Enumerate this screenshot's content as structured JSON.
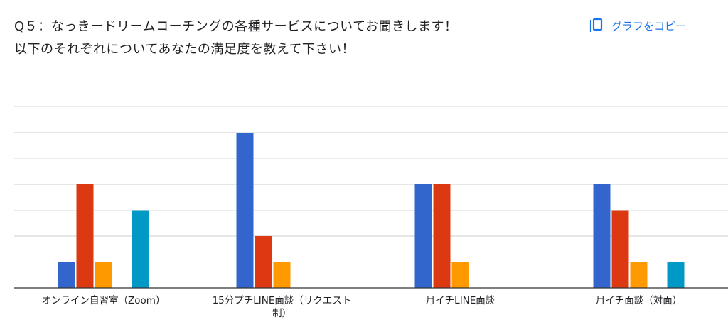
{
  "question": {
    "line1": "Q５：なっきードリームコーチングの各種サービスについてお聞きします！",
    "line2": "以下のそれぞれについてあなたの満足度を教えて下さい！"
  },
  "copy_button": {
    "label": "グラフをコピー",
    "icon": "copy-icon"
  },
  "chart_data": {
    "type": "bar",
    "categories": [
      [
        "オンライン自習室（Zoom）"
      ],
      [
        "15分プチLINE面談（リクエスト",
        "制）"
      ],
      [
        "月イチLINE面談"
      ],
      [
        "月イチ面談（対面）"
      ]
    ],
    "series": [
      {
        "color": "#3366cc",
        "values": [
          1,
          6,
          4,
          4
        ]
      },
      {
        "color": "#dc3912",
        "values": [
          4,
          2,
          4,
          3
        ]
      },
      {
        "color": "#ff9900",
        "values": [
          1,
          1,
          1,
          1
        ]
      },
      {
        "color": "#109618",
        "values": [
          0,
          0,
          0,
          0
        ]
      },
      {
        "color": "#0099c6",
        "values": [
          3,
          0,
          0,
          1
        ]
      }
    ],
    "ylim": [
      0,
      7
    ],
    "grid": true,
    "legend": "none"
  }
}
